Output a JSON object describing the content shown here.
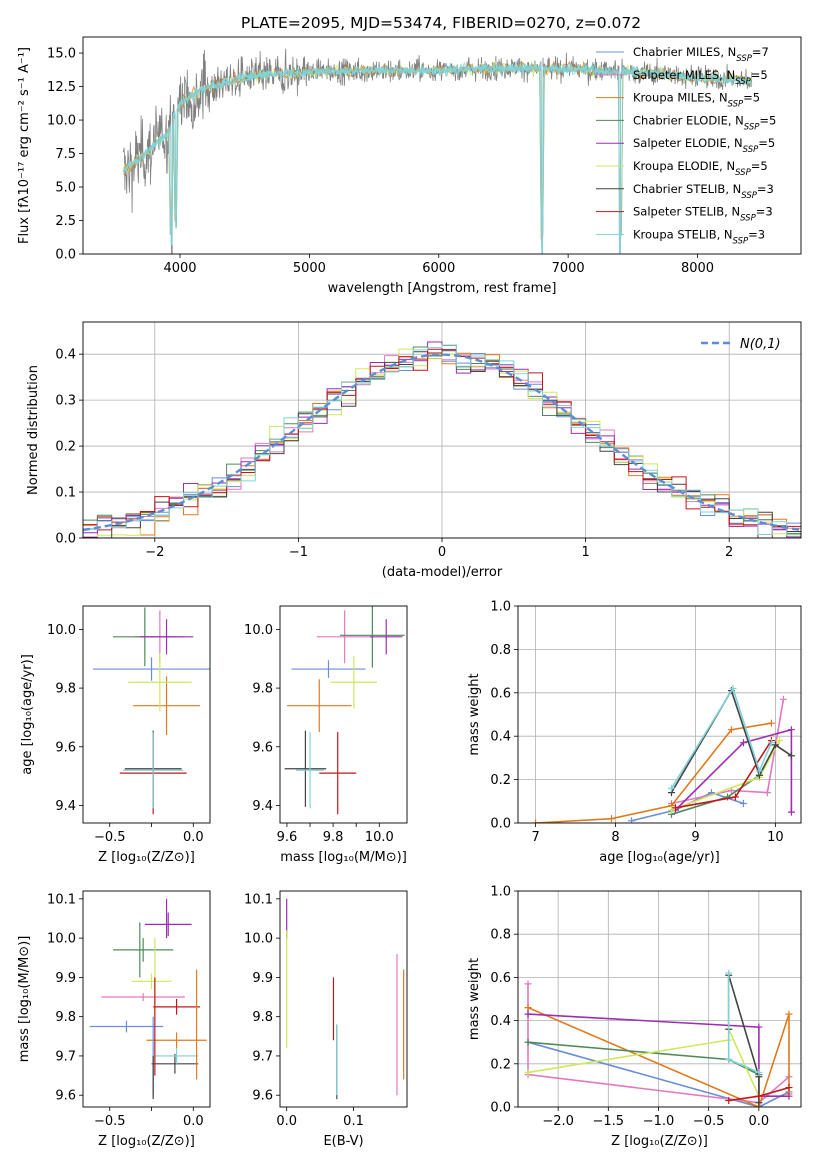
{
  "title": "PLATE=2095, MJD=53474, FIBERID=0270, z=0.072",
  "models": [
    {
      "name": "Chabrier MILES, N",
      "sub": "SSP",
      "tail": "=7",
      "color": "#6a8fd8"
    },
    {
      "name": "Salpeter MILES, N",
      "sub": "SSP",
      "tail": "=5",
      "color": "#e377c2"
    },
    {
      "name": "Kroupa MILES, N",
      "sub": "SSP",
      "tail": "=5",
      "color": "#e07a1f"
    },
    {
      "name": "Chabrier ELODIE, N",
      "sub": "SSP",
      "tail": "=5",
      "color": "#4f8a5b"
    },
    {
      "name": "Salpeter ELODIE, N",
      "sub": "SSP",
      "tail": "=5",
      "color": "#9b2fb0"
    },
    {
      "name": "Kroupa ELODIE, N",
      "sub": "SSP",
      "tail": "=5",
      "color": "#cde85a"
    },
    {
      "name": "Chabrier STELIB, N",
      "sub": "SSP",
      "tail": "=3",
      "color": "#444444"
    },
    {
      "name": "Salpeter STELIB, N",
      "sub": "SSP",
      "tail": "=3",
      "color": "#c4161c"
    },
    {
      "name": "Kroupa STELIB, N",
      "sub": "SSP",
      "tail": "=3",
      "color": "#7fd3d8"
    }
  ],
  "chart_data": [
    {
      "id": "spectrum",
      "type": "line",
      "xlabel": "wavelength [Angstrom, rest frame]",
      "ylabel": "Flux [f_λ 10^-17 erg cm^-2 s^-1 A^-1]",
      "xlim": [
        3250,
        8800
      ],
      "ylim": [
        0,
        16.2
      ],
      "xticks": [
        4000,
        5000,
        6000,
        7000,
        8000
      ],
      "yticks": [
        0.0,
        2.5,
        5.0,
        7.5,
        10.0,
        12.5,
        15.0
      ],
      "xrange_data": [
        3560,
        8420
      ],
      "continuum": [
        [
          3560,
          6.2
        ],
        [
          3700,
          7.2
        ],
        [
          3900,
          9.0
        ],
        [
          4000,
          11.3
        ],
        [
          4200,
          12.4
        ],
        [
          4500,
          13.2
        ],
        [
          5000,
          13.6
        ],
        [
          5500,
          13.7
        ],
        [
          6000,
          13.7
        ],
        [
          6500,
          13.9
        ],
        [
          7000,
          13.8
        ],
        [
          7500,
          13.6
        ],
        [
          8000,
          13.2
        ],
        [
          8420,
          12.9
        ]
      ],
      "features": [
        {
          "x": 3934,
          "depth": 9.0
        },
        {
          "x": 3969,
          "depth": 8.5
        },
        {
          "x": 6800,
          "depth": 13.8
        },
        {
          "x": 7400,
          "depth": 13.6
        }
      ],
      "grid": false,
      "legend": "right"
    },
    {
      "id": "residuals",
      "type": "histogram",
      "xlabel": "(data-model)/error",
      "ylabel": "Normed distribution",
      "xlim": [
        -2.5,
        2.5
      ],
      "ylim": [
        0,
        0.47
      ],
      "xticks": [
        -2,
        -1,
        0,
        1,
        2
      ],
      "yticks": [
        0.0,
        0.1,
        0.2,
        0.3,
        0.4
      ],
      "bin_width": 0.1,
      "reference_label": "N(0,1)",
      "reference_color": "#5b8ed6",
      "grid": true,
      "legend": "top-right"
    },
    {
      "id": "age-vs-Z",
      "type": "errorbar",
      "xlabel": "Z [log10(Z/Z☉)]",
      "ylabel": "age [log10(age/yr)]",
      "xlim": [
        -0.66,
        0.1
      ],
      "ylim": [
        9.34,
        10.08
      ],
      "xticks": [
        -0.5,
        -0.25,
        0.0
      ],
      "xticklabels": [
        "−0.5",
        "",
        "0.0"
      ],
      "yticks": [
        9.4,
        9.6,
        9.8,
        10.0
      ],
      "points": [
        {
          "m": 0,
          "x": -0.25,
          "xerr": 0.35,
          "y": 9.865,
          "yerr": 0.04
        },
        {
          "m": 1,
          "x": -0.2,
          "xerr": 0.15,
          "y": 9.975,
          "yerr": 0.09
        },
        {
          "m": 2,
          "x": -0.16,
          "xerr": 0.2,
          "y": 9.74,
          "yerr": 0.1
        },
        {
          "m": 3,
          "x": -0.29,
          "xerr": 0.19,
          "y": 9.975,
          "yerr": 0.1
        },
        {
          "m": 4,
          "x": -0.16,
          "xerr": 0.16,
          "y": 9.975,
          "yerr": 0.06
        },
        {
          "m": 5,
          "x": -0.2,
          "xerr": 0.19,
          "y": 9.82,
          "yerr": 0.1
        },
        {
          "m": 6,
          "x": -0.24,
          "xerr": 0.17,
          "y": 9.525,
          "yerr": 0.13
        },
        {
          "m": 7,
          "x": -0.24,
          "xerr": 0.2,
          "y": 9.51,
          "yerr": 0.14
        },
        {
          "m": 8,
          "x": -0.24,
          "xerr": 0.18,
          "y": 9.52,
          "yerr": 0.13
        }
      ]
    },
    {
      "id": "age-vs-mass",
      "type": "errorbar",
      "xlabel": "mass [log10(M/M☉)]",
      "ylabel": "",
      "xlim": [
        9.57,
        10.12
      ],
      "ylim": [
        9.34,
        10.08
      ],
      "xticks": [
        9.6,
        9.8,
        10.0
      ],
      "xticklabels": [
        "9.6",
        "9.8",
        "10.0"
      ],
      "yticks": [
        9.4,
        9.6,
        9.8,
        10.0
      ],
      "minor_xticks": [
        9.7,
        9.9
      ],
      "points": [
        {
          "m": 0,
          "x": 9.78,
          "xerr": 0.16,
          "y": 9.865,
          "yerr": 0.03
        },
        {
          "m": 1,
          "x": 9.85,
          "xerr": 0.12,
          "y": 9.975,
          "yerr": 0.09
        },
        {
          "m": 2,
          "x": 9.74,
          "xerr": 0.14,
          "y": 9.74,
          "yerr": 0.09
        },
        {
          "m": 3,
          "x": 9.97,
          "xerr": 0.14,
          "y": 9.98,
          "yerr": 0.11
        },
        {
          "m": 4,
          "x": 10.03,
          "xerr": 0.07,
          "y": 9.975,
          "yerr": 0.06
        },
        {
          "m": 5,
          "x": 9.89,
          "xerr": 0.1,
          "y": 9.82,
          "yerr": 0.09
        },
        {
          "m": 6,
          "x": 9.68,
          "xerr": 0.09,
          "y": 9.525,
          "yerr": 0.13
        },
        {
          "m": 7,
          "x": 9.82,
          "xerr": 0.08,
          "y": 9.51,
          "yerr": 0.14
        },
        {
          "m": 8,
          "x": 9.7,
          "xerr": 0.06,
          "y": 9.52,
          "yerr": 0.13
        }
      ]
    },
    {
      "id": "massweight-vs-age",
      "type": "line",
      "xlabel": "age [log10(age/yr)]",
      "ylabel": "mass weight",
      "xlim": [
        6.78,
        10.32
      ],
      "ylim": [
        0,
        1.0
      ],
      "xticks": [
        7,
        8,
        9,
        10
      ],
      "yticks": [
        0.0,
        0.2,
        0.4,
        0.6,
        0.8,
        1.0
      ],
      "series": [
        {
          "m": 0,
          "points": [
            [
              8.2,
              0.01
            ],
            [
              8.75,
              0.06
            ],
            [
              9.2,
              0.14
            ],
            [
              9.6,
              0.09
            ]
          ]
        },
        {
          "m": 1,
          "points": [
            [
              8.7,
              0.09
            ],
            [
              9.45,
              0.15
            ],
            [
              9.9,
              0.14
            ],
            [
              10.1,
              0.57
            ]
          ]
        },
        {
          "m": 2,
          "points": [
            [
              7.0,
              0.0
            ],
            [
              7.95,
              0.02
            ],
            [
              8.7,
              0.08
            ],
            [
              9.45,
              0.43
            ],
            [
              9.95,
              0.46
            ]
          ]
        },
        {
          "m": 3,
          "points": [
            [
              8.7,
              0.04
            ],
            [
              9.4,
              0.12
            ],
            [
              9.8,
              0.22
            ]
          ]
        },
        {
          "m": 4,
          "points": [
            [
              8.75,
              0.06
            ],
            [
              9.6,
              0.37
            ],
            [
              10.2,
              0.43
            ],
            [
              10.2,
              0.05
            ]
          ]
        },
        {
          "m": 5,
          "points": [
            [
              8.7,
              0.06
            ],
            [
              9.8,
              0.21
            ],
            [
              10.05,
              0.38
            ]
          ]
        },
        {
          "m": 6,
          "points": [
            [
              8.7,
              0.14
            ],
            [
              9.45,
              0.61
            ],
            [
              9.8,
              0.22
            ],
            [
              10.0,
              0.36
            ],
            [
              10.2,
              0.31
            ]
          ]
        },
        {
          "m": 7,
          "points": [
            [
              8.75,
              0.07
            ],
            [
              9.5,
              0.12
            ],
            [
              9.95,
              0.38
            ]
          ]
        },
        {
          "m": 8,
          "points": [
            [
              8.7,
              0.16
            ],
            [
              9.47,
              0.62
            ],
            [
              9.8,
              0.24
            ],
            [
              9.95,
              0.37
            ]
          ]
        }
      ],
      "grid": true
    },
    {
      "id": "mass-vs-Z",
      "type": "errorbar",
      "xlabel": "Z [log10(Z/Z☉)]",
      "ylabel": "mass [log10(M/M☉)]",
      "xlim": [
        -0.66,
        0.1
      ],
      "ylim": [
        9.57,
        10.12
      ],
      "xticks": [
        -0.5,
        -0.25,
        0.0
      ],
      "xticklabels": [
        "−0.5",
        "",
        "0.0"
      ],
      "yticks": [
        9.6,
        9.7,
        9.8,
        9.9,
        10.0,
        10.1
      ],
      "points": [
        {
          "m": 0,
          "x": -0.4,
          "xerr": 0.22,
          "y": 9.775,
          "yerr": 0.015
        },
        {
          "m": 1,
          "x": -0.3,
          "xerr": 0.25,
          "y": 9.85,
          "yerr": 0.01
        },
        {
          "m": 2,
          "x": -0.1,
          "xerr": 0.18,
          "y": 9.74,
          "yerr": 0.02
        },
        {
          "m": 3,
          "x": -0.3,
          "xerr": 0.18,
          "y": 9.97,
          "yerr": 0.03
        },
        {
          "m": 4,
          "x": -0.15,
          "xerr": 0.14,
          "y": 10.035,
          "yerr": 0.03
        },
        {
          "m": 5,
          "x": -0.25,
          "xerr": 0.12,
          "y": 9.89,
          "yerr": 0.02
        },
        {
          "m": 6,
          "x": -0.11,
          "xerr": 0.14,
          "y": 9.68,
          "yerr": 0.025
        },
        {
          "m": 7,
          "x": -0.1,
          "xerr": 0.14,
          "y": 9.825,
          "yerr": 0.02
        },
        {
          "m": 8,
          "x": -0.1,
          "xerr": 0.13,
          "y": 9.7,
          "yerr": 0.02
        }
      ],
      "vbars": [
        {
          "m": 0,
          "x": -0.24,
          "y0": 9.6,
          "y1": 9.8
        },
        {
          "m": 2,
          "x": 0.02,
          "y0": 9.64,
          "y1": 9.92
        },
        {
          "m": 3,
          "x": -0.32,
          "y0": 9.9,
          "y1": 10.04
        },
        {
          "m": 4,
          "x": -0.16,
          "y0": 10.0,
          "y1": 10.1
        },
        {
          "m": 5,
          "x": -0.23,
          "y0": 9.8,
          "y1": 10.0
        },
        {
          "m": 6,
          "x": -0.24,
          "y0": 9.59,
          "y1": 9.7
        },
        {
          "m": 7,
          "x": -0.23,
          "y0": 9.65,
          "y1": 9.9
        }
      ]
    },
    {
      "id": "mass-vs-EBV",
      "type": "errorbar",
      "xlabel": "E(B-V)",
      "ylabel": "",
      "xlim": [
        -0.01,
        0.18
      ],
      "ylim": [
        9.57,
        10.12
      ],
      "xticks": [
        0.0,
        0.1
      ],
      "xticklabels": [
        "0.0",
        "0.1"
      ],
      "yticks": [
        9.6,
        9.7,
        9.8,
        9.9,
        10.0,
        10.1
      ],
      "vbars": [
        {
          "m": 4,
          "x": 0.0,
          "y0": 10.0,
          "y1": 10.1
        },
        {
          "m": 5,
          "x": 0.0,
          "y0": 9.72,
          "y1": 10.02
        },
        {
          "m": 7,
          "x": 0.07,
          "y0": 9.74,
          "y1": 9.9
        },
        {
          "m": 6,
          "x": 0.075,
          "y0": 9.59,
          "y1": 9.78
        },
        {
          "m": 8,
          "x": 0.075,
          "y0": 9.6,
          "y1": 9.78
        },
        {
          "m": 1,
          "x": 0.165,
          "y0": 9.6,
          "y1": 9.96
        },
        {
          "m": 2,
          "x": 0.175,
          "y0": 9.64,
          "y1": 9.92
        }
      ]
    },
    {
      "id": "massweight-vs-Z",
      "type": "line",
      "xlabel": "Z [log10(Z/Z☉)]",
      "ylabel": "mass weight",
      "xlim": [
        -2.4,
        0.42
      ],
      "ylim": [
        0,
        1.0
      ],
      "xticks": [
        -2.0,
        -1.5,
        -1.0,
        -0.5,
        0.0
      ],
      "yticks": [
        0.0,
        0.2,
        0.4,
        0.6,
        0.8,
        1.0
      ],
      "series": [
        {
          "m": 0,
          "points": [
            [
              -2.3,
              0.3
            ],
            [
              0.0,
              0.0
            ],
            [
              0.3,
              0.07
            ]
          ]
        },
        {
          "m": 1,
          "points": [
            [
              -2.3,
              0.57
            ],
            [
              -2.3,
              0.15
            ],
            [
              0.0,
              0.02
            ],
            [
              0.3,
              0.14
            ]
          ]
        },
        {
          "m": 2,
          "points": [
            [
              -2.3,
              0.46
            ],
            [
              0.0,
              0.0
            ],
            [
              0.3,
              0.43
            ],
            [
              0.3,
              0.06
            ]
          ]
        },
        {
          "m": 3,
          "points": [
            [
              -2.3,
              0.3
            ],
            [
              -0.3,
              0.22
            ],
            [
              0.0,
              0.15
            ]
          ]
        },
        {
          "m": 4,
          "points": [
            [
              -2.3,
              0.43
            ],
            [
              0.0,
              0.37
            ],
            [
              0.0,
              0.05
            ],
            [
              0.3,
              0.05
            ]
          ]
        },
        {
          "m": 5,
          "points": [
            [
              -2.3,
              0.16
            ],
            [
              -0.3,
              0.31
            ],
            [
              -0.3,
              0.36
            ],
            [
              0.0,
              0.05
            ],
            [
              0.3,
              0.09
            ]
          ]
        },
        {
          "m": 6,
          "points": [
            [
              -0.3,
              0.36
            ],
            [
              -0.3,
              0.61
            ],
            [
              0.0,
              0.14
            ],
            [
              0.0,
              0.02
            ]
          ]
        },
        {
          "m": 7,
          "points": [
            [
              -0.3,
              0.03
            ],
            [
              0.0,
              0.05
            ],
            [
              0.3,
              0.09
            ]
          ]
        },
        {
          "m": 8,
          "points": [
            [
              -0.3,
              0.62
            ],
            [
              -0.3,
              0.22
            ],
            [
              0.0,
              0.16
            ]
          ]
        }
      ],
      "grid": true
    }
  ]
}
